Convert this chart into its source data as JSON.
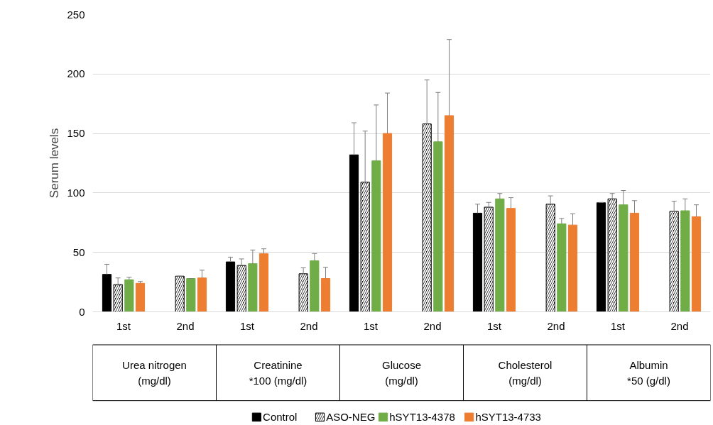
{
  "chart_data": {
    "type": "bar",
    "ylabel": "Serum levels",
    "categories": [
      "1st",
      "2nd",
      "1st",
      "2nd",
      "1st",
      "2nd",
      "1st",
      "2nd",
      "1st",
      "2nd"
    ],
    "ylim": [
      0,
      250
    ],
    "yticks": [
      0,
      50,
      100,
      150,
      200,
      250
    ],
    "grid": "y",
    "legend": "bottom",
    "annotations": [
      "Urea nitrogen (mg/dl)",
      "Creatinine *100 (mg/dl)",
      "Glucose (mg/dl)",
      "Cholesterol (mg/dl)",
      "Albumin *50 (g/dl)"
    ],
    "series": [
      {
        "name": "Control",
        "color": "#000000",
        "values": [
          31.5,
          null,
          42,
          null,
          132,
          null,
          83,
          null,
          91.7,
          null
        ],
        "errors": [
          [
            31.5,
            40
          ],
          null,
          [
            42,
            46
          ],
          null,
          [
            132,
            159
          ],
          null,
          [
            83,
            90.5
          ],
          null,
          [
            91.7,
            92
          ],
          null
        ]
      },
      {
        "name": "ASO-NEG",
        "color": "#000000",
        "values": [
          23,
          30,
          39,
          32,
          109,
          158,
          88,
          90.5,
          95,
          84.5
        ],
        "errors": [
          [
            23,
            28.5
          ],
          [
            30,
            30
          ],
          [
            39,
            44.5
          ],
          [
            32,
            37
          ],
          [
            109,
            152
          ],
          [
            158,
            195
          ],
          [
            88,
            92
          ],
          [
            90.5,
            97.5
          ],
          [
            95,
            99.5
          ],
          [
            84.5,
            93
          ]
        ]
      },
      {
        "name": "hSYT13-4378",
        "color": "#70ad47",
        "values": [
          27,
          28,
          40.5,
          43,
          127,
          143,
          95,
          74,
          90,
          85
        ],
        "errors": [
          [
            27,
            29
          ],
          [
            28,
            28
          ],
          [
            40.5,
            52
          ],
          [
            43,
            49
          ],
          [
            127,
            174
          ],
          [
            143,
            184.5
          ],
          [
            95,
            99.5
          ],
          [
            74,
            78.5
          ],
          [
            90,
            102
          ],
          [
            85,
            95
          ]
        ]
      },
      {
        "name": "hSYT13-4733",
        "color": "#ed7d31",
        "values": [
          24,
          28.5,
          49,
          28,
          150,
          165,
          87,
          73,
          83,
          80
        ],
        "errors": [
          [
            24,
            25.5
          ],
          [
            28.5,
            35
          ],
          [
            49,
            53
          ],
          [
            28,
            37.5
          ],
          [
            150,
            184
          ],
          [
            165,
            229
          ],
          [
            87,
            96
          ],
          [
            73,
            82.5
          ],
          [
            83,
            93.5
          ],
          [
            80,
            90
          ]
        ]
      }
    ]
  }
}
